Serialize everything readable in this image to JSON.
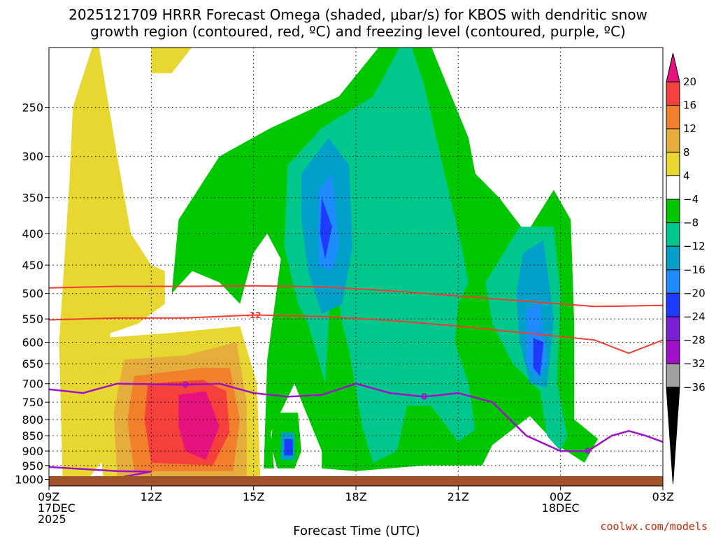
{
  "title_line1": "2025121709 HRRR Forecast Omega (shaded, μbar/s) for KBOS with dendritic snow",
  "title_line2": "growth region (contoured, red, ºC) and freezing level (contoured, purple, ºC)",
  "credit": "coolwx.com/models",
  "chart_data": {
    "type": "time-height contour",
    "xlabel": "Forecast Time (UTC)",
    "x_ticks": [
      {
        "line1": "09Z",
        "line2": "17DEC",
        "line3": "2025"
      },
      {
        "line1": "12Z",
        "line2": "",
        "line3": ""
      },
      {
        "line1": "15Z",
        "line2": "",
        "line3": ""
      },
      {
        "line1": "18Z",
        "line2": "",
        "line3": ""
      },
      {
        "line1": "21Z",
        "line2": "",
        "line3": ""
      },
      {
        "line1": "00Z",
        "line2": "18DEC",
        "line3": ""
      },
      {
        "line1": "03Z",
        "line2": "",
        "line3": ""
      }
    ],
    "x_range_hours": [
      0,
      18
    ],
    "y_axis": "pressure (hPa), log scale, inverted",
    "y_range": [
      1025,
      200
    ],
    "y_ticks": [
      250,
      300,
      350,
      400,
      450,
      500,
      550,
      600,
      650,
      700,
      750,
      800,
      850,
      900,
      950,
      1000
    ],
    "grid": true,
    "colorbar": {
      "labels": [
        "20",
        "16",
        "12",
        "8",
        "4",
        "−4",
        "−8",
        "−12",
        "−16",
        "−20",
        "−24",
        "−28",
        "−32",
        "−36"
      ],
      "colors": [
        "#e8127e",
        "#f5403c",
        "#f27f2b",
        "#e5ae3c",
        "#e8d631",
        "#ffffff",
        "#00c800",
        "#00c88c",
        "#00a0c8",
        "#1e8cff",
        "#1e3cff",
        "#7a1fd4",
        "#a010c8",
        "#a0a0a0",
        "#000000"
      ]
    },
    "temperature_contours": [
      {
        "label": "-12",
        "color": "#f03c32",
        "points": [
          [
            0,
            490
          ],
          [
            2,
            487
          ],
          [
            4,
            487
          ],
          [
            6,
            486
          ],
          [
            8,
            488
          ],
          [
            10,
            495
          ],
          [
            12,
            505
          ],
          [
            14,
            515
          ],
          [
            16,
            525
          ],
          [
            18,
            523
          ]
        ]
      },
      {
        "label": "-12",
        "color": "#f03c32",
        "points": [
          [
            0,
            552
          ],
          [
            2,
            548
          ],
          [
            4,
            548
          ],
          [
            6,
            542
          ],
          [
            8,
            545
          ],
          [
            10,
            553
          ],
          [
            12,
            565
          ],
          [
            14,
            580
          ],
          [
            16,
            595
          ],
          [
            17,
            625
          ],
          [
            18,
            595
          ]
        ]
      }
    ],
    "freezing_level": {
      "label": "0",
      "color": "#a010c8",
      "points": [
        [
          0,
          715
        ],
        [
          1,
          725
        ],
        [
          2,
          700
        ],
        [
          4,
          703
        ],
        [
          5,
          700
        ],
        [
          6,
          725
        ],
        [
          7,
          735
        ],
        [
          8,
          730
        ],
        [
          9,
          700
        ],
        [
          10,
          725
        ],
        [
          11,
          735
        ],
        [
          12,
          725
        ],
        [
          13,
          750
        ],
        [
          14,
          850
        ],
        [
          15,
          900
        ],
        [
          15.8,
          900
        ],
        [
          16.5,
          850
        ],
        [
          17,
          835
        ],
        [
          17.5,
          850
        ],
        [
          18,
          870
        ]
      ]
    },
    "freezing_level_low": {
      "color": "#a010c8",
      "points": [
        [
          0,
          955
        ],
        [
          2,
          970
        ],
        [
          3,
          972
        ],
        [
          2.2,
          990
        ]
      ]
    },
    "omega_regions": [
      {
        "level": 4,
        "color": "#e8d631",
        "points": [
          [
            0.4,
            1000
          ],
          [
            0.3,
            600
          ],
          [
            0.6,
            330
          ],
          [
            0.7,
            250
          ],
          [
            1.4,
            190
          ],
          [
            2.0,
            300
          ],
          [
            2.4,
            400
          ],
          [
            3.0,
            450
          ],
          [
            3.4,
            460
          ],
          [
            3.4,
            520
          ],
          [
            2.6,
            560
          ],
          [
            1.8,
            580
          ],
          [
            1.6,
            700
          ],
          [
            1.8,
            900
          ],
          [
            1.2,
            990
          ]
        ]
      },
      {
        "level": 4,
        "color": "#e8d631",
        "points": [
          [
            3.0,
            190
          ],
          [
            4.5,
            190
          ],
          [
            3.6,
            220
          ],
          [
            3.0,
            220
          ]
        ]
      },
      {
        "level": 4,
        "color": "#e8d631",
        "points": [
          [
            1.6,
            590
          ],
          [
            3.5,
            580
          ],
          [
            5.6,
            565
          ],
          [
            6.1,
            700
          ],
          [
            6.2,
            1000
          ],
          [
            1.6,
            1000
          ],
          [
            1.4,
            800
          ]
        ]
      },
      {
        "level": 8,
        "color": "#e5ae3c",
        "points": [
          [
            2.2,
            640
          ],
          [
            4.0,
            630
          ],
          [
            5.5,
            600
          ],
          [
            5.8,
            750
          ],
          [
            5.8,
            1000
          ],
          [
            2.0,
            1000
          ],
          [
            1.9,
            780
          ]
        ]
      },
      {
        "level": 12,
        "color": "#f27f2b",
        "points": [
          [
            2.5,
            680
          ],
          [
            4.5,
            660
          ],
          [
            5.3,
            660
          ],
          [
            5.6,
            800
          ],
          [
            5.4,
            970
          ],
          [
            2.5,
            970
          ],
          [
            2.3,
            800
          ]
        ]
      },
      {
        "level": 16,
        "color": "#f5403c",
        "points": [
          [
            2.9,
            700
          ],
          [
            4.5,
            690
          ],
          [
            5.2,
            720
          ],
          [
            5.3,
            840
          ],
          [
            4.8,
            950
          ],
          [
            3.0,
            940
          ],
          [
            2.8,
            800
          ]
        ]
      },
      {
        "level": 20,
        "color": "#e8127e",
        "points": [
          [
            3.8,
            730
          ],
          [
            4.6,
            720
          ],
          [
            5.0,
            820
          ],
          [
            4.6,
            930
          ],
          [
            4.0,
            900
          ],
          [
            3.8,
            820
          ]
        ]
      },
      {
        "level": -4,
        "color": "#00c800",
        "points": [
          [
            3.6,
            500
          ],
          [
            3.8,
            380
          ],
          [
            5.0,
            300
          ],
          [
            6.5,
            270
          ],
          [
            8.5,
            240
          ],
          [
            10.7,
            170
          ],
          [
            12.3,
            280
          ],
          [
            12.5,
            320
          ],
          [
            13.2,
            350
          ],
          [
            14.0,
            400
          ],
          [
            14.8,
            340
          ],
          [
            15.3,
            380
          ],
          [
            15.4,
            560
          ],
          [
            15.4,
            800
          ],
          [
            16.1,
            860
          ],
          [
            15.7,
            940
          ],
          [
            14.9,
            880
          ],
          [
            14.1,
            790
          ],
          [
            13.0,
            880
          ],
          [
            12.7,
            950
          ],
          [
            11.0,
            950
          ],
          [
            9.0,
            970
          ],
          [
            8.0,
            960
          ],
          [
            8.0,
            900
          ],
          [
            7.5,
            770
          ],
          [
            7.2,
            700
          ],
          [
            6.5,
            840
          ],
          [
            6.6,
            960
          ],
          [
            6.3,
            960
          ],
          [
            6.4,
            640
          ],
          [
            6.8,
            440
          ],
          [
            6.4,
            400
          ],
          [
            6.0,
            430
          ],
          [
            5.6,
            520
          ],
          [
            5.0,
            480
          ],
          [
            4.2,
            460
          ]
        ]
      },
      {
        "level": -8,
        "color": "#00c88c",
        "points": [
          [
            7.0,
            310
          ],
          [
            8.0,
            270
          ],
          [
            9.5,
            240
          ],
          [
            10.5,
            190
          ],
          [
            11.0,
            230
          ],
          [
            11.6,
            320
          ],
          [
            12.1,
            420
          ],
          [
            12.3,
            480
          ],
          [
            12.0,
            520
          ],
          [
            11.9,
            600
          ],
          [
            12.3,
            700
          ],
          [
            12.5,
            830
          ],
          [
            12.0,
            870
          ],
          [
            11.2,
            760
          ],
          [
            10.5,
            760
          ],
          [
            10.2,
            900
          ],
          [
            9.5,
            940
          ],
          [
            9.2,
            830
          ],
          [
            9.0,
            720
          ],
          [
            8.8,
            620
          ],
          [
            8.6,
            560
          ],
          [
            8.3,
            450
          ],
          [
            8.2,
            560
          ],
          [
            8.1,
            700
          ],
          [
            7.6,
            560
          ],
          [
            7.3,
            520
          ],
          [
            6.9,
            420
          ]
        ]
      },
      {
        "level": -8,
        "color": "#00c88c",
        "points": [
          [
            12.8,
            480
          ],
          [
            13.8,
            390
          ],
          [
            14.8,
            390
          ],
          [
            15.0,
            500
          ],
          [
            14.9,
            700
          ],
          [
            15.2,
            850
          ],
          [
            15.0,
            900
          ],
          [
            14.6,
            850
          ],
          [
            14.4,
            720
          ],
          [
            13.6,
            650
          ],
          [
            13.0,
            560
          ]
        ]
      },
      {
        "level": -12,
        "color": "#00a0c8",
        "points": [
          [
            7.4,
            320
          ],
          [
            8.2,
            280
          ],
          [
            8.8,
            310
          ],
          [
            8.9,
            420
          ],
          [
            8.6,
            520
          ],
          [
            8.0,
            540
          ],
          [
            7.6,
            460
          ],
          [
            7.4,
            380
          ]
        ]
      },
      {
        "level": -12,
        "color": "#00a0c8",
        "points": [
          [
            13.9,
            430
          ],
          [
            14.5,
            410
          ],
          [
            14.8,
            550
          ],
          [
            14.6,
            710
          ],
          [
            14.1,
            700
          ],
          [
            13.8,
            600
          ],
          [
            13.7,
            500
          ]
        ]
      },
      {
        "level": -16,
        "color": "#1e8cff",
        "points": [
          [
            7.9,
            340
          ],
          [
            8.3,
            320
          ],
          [
            8.5,
            420
          ],
          [
            8.3,
            460
          ],
          [
            7.9,
            450
          ]
        ]
      },
      {
        "level": -16,
        "color": "#1e8cff",
        "points": [
          [
            14.0,
            530
          ],
          [
            14.4,
            520
          ],
          [
            14.6,
            650
          ],
          [
            14.3,
            690
          ],
          [
            14.0,
            650
          ]
        ]
      },
      {
        "level": -20,
        "color": "#1e3cff",
        "points": [
          [
            8.0,
            350
          ],
          [
            8.3,
            390
          ],
          [
            8.1,
            440
          ],
          [
            7.95,
            400
          ]
        ]
      },
      {
        "level": -20,
        "color": "#1e3cff",
        "points": [
          [
            14.2,
            590
          ],
          [
            14.5,
            600
          ],
          [
            14.4,
            680
          ],
          [
            14.2,
            660
          ]
        ]
      },
      {
        "level": -4,
        "color": "#00c800",
        "points": [
          [
            6.6,
            780
          ],
          [
            7.3,
            780
          ],
          [
            7.4,
            900
          ],
          [
            7.2,
            960
          ],
          [
            6.7,
            960
          ],
          [
            6.5,
            880
          ]
        ]
      },
      {
        "level": -12,
        "color": "#00a0c8",
        "points": [
          [
            6.8,
            840
          ],
          [
            7.2,
            840
          ],
          [
            7.2,
            930
          ],
          [
            6.8,
            930
          ]
        ]
      },
      {
        "level": -20,
        "color": "#1e3cff",
        "points": [
          [
            6.9,
            860
          ],
          [
            7.15,
            860
          ],
          [
            7.15,
            915
          ],
          [
            6.9,
            915
          ]
        ]
      }
    ],
    "ground_band_color": "#a0522d"
  }
}
